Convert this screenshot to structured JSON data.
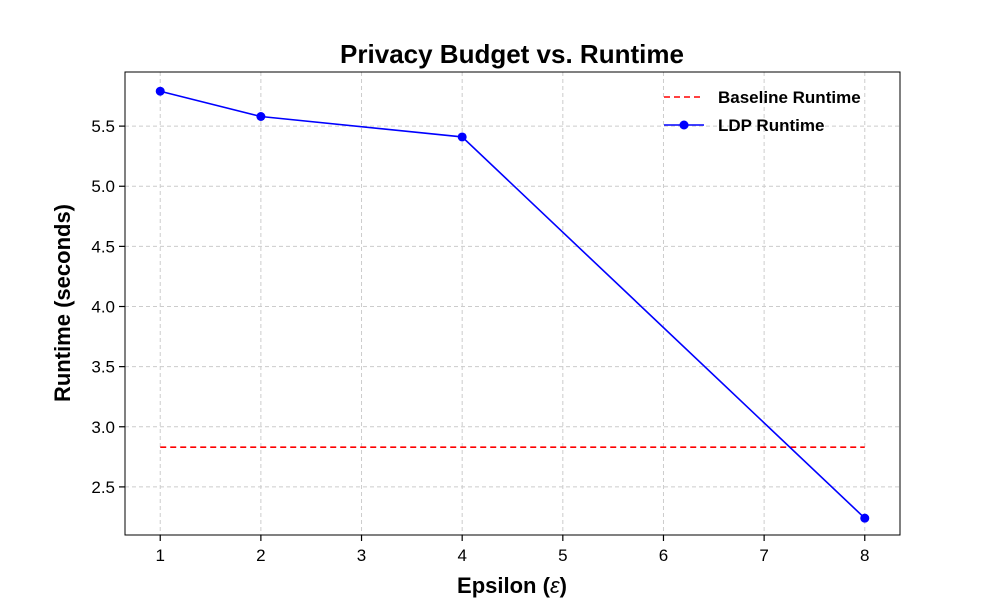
{
  "chart_data": {
    "type": "line",
    "title": "Privacy Budget vs. Runtime",
    "xlabel_prefix": "Epsilon (",
    "xlabel_symbol": "ε",
    "xlabel_suffix": ")",
    "ylabel": "Runtime (seconds)",
    "xlim": [
      0.65,
      8.35
    ],
    "ylim": [
      2.1,
      5.95
    ],
    "xticks": [
      1,
      2,
      3,
      4,
      5,
      6,
      7,
      8
    ],
    "yticks": [
      2.5,
      3.0,
      3.5,
      4.0,
      4.5,
      5.0,
      5.5
    ],
    "grid": true,
    "legend_position": "top-right",
    "series": [
      {
        "name": "Baseline Runtime",
        "style": "dashed",
        "color": "#ff0000",
        "x": [
          1,
          8
        ],
        "y": [
          2.83,
          2.83
        ]
      },
      {
        "name": "LDP Runtime",
        "style": "solid-markers",
        "color": "#0000ff",
        "x": [
          1,
          2,
          4,
          8
        ],
        "y": [
          5.79,
          5.58,
          5.41,
          2.24
        ]
      }
    ]
  }
}
